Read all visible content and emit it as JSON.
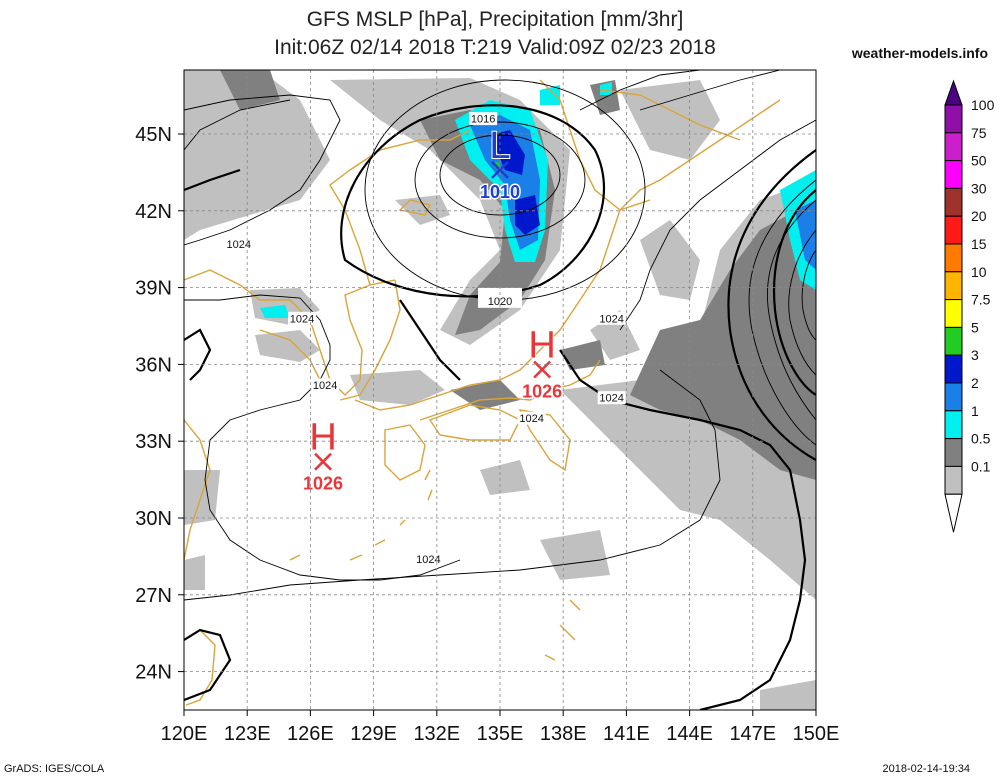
{
  "header": {
    "title_line1": "GFS MSLP [hPa], Precipitation [mm/3hr]",
    "title_line2": "Init:06Z 02/14 2018 T:219 Valid:09Z 02/23 2018",
    "brand": "weather-models.info"
  },
  "footer": {
    "credit": "GrADS: IGES/COLA",
    "timestamp": "2018-02-14-19:34"
  },
  "map": {
    "lon_labels": [
      "120E",
      "123E",
      "126E",
      "129E",
      "132E",
      "135E",
      "138E",
      "141E",
      "144E",
      "147E",
      "150E"
    ],
    "lat_labels": [
      "45N",
      "42N",
      "39N",
      "36N",
      "33N",
      "30N",
      "27N",
      "24N"
    ],
    "lon_range": [
      120,
      150
    ],
    "lat_range": [
      22.5,
      47.5
    ],
    "centers": [
      {
        "type": "L",
        "value": "1010",
        "lon": 135.0,
        "lat": 43.6,
        "color": "#1a3fd6"
      },
      {
        "type": "H",
        "value": "1026",
        "lon": 137.0,
        "lat": 35.8,
        "color": "#e8363a"
      },
      {
        "type": "H",
        "value": "1026",
        "lon": 126.6,
        "lat": 32.2,
        "color": "#e8363a"
      }
    ],
    "isobar_labels": [
      {
        "text": "1016",
        "lon": 134.2,
        "lat": 45.6
      },
      {
        "text": "1020",
        "lon": 135.0,
        "lat": 38.6
      },
      {
        "text": "1024",
        "lon": 122.6,
        "lat": 40.7
      },
      {
        "text": "1024",
        "lon": 125.6,
        "lat": 37.8
      },
      {
        "text": "1024",
        "lon": 126.7,
        "lat": 35.2
      },
      {
        "text": "1024",
        "lon": 140.3,
        "lat": 37.8
      },
      {
        "text": "1024",
        "lon": 140.3,
        "lat": 34.7
      },
      {
        "text": "1024",
        "lon": 136.5,
        "lat": 33.9
      },
      {
        "text": "1024",
        "lon": 131.6,
        "lat": 28.4
      }
    ]
  },
  "colorbar": {
    "labels": [
      "100",
      "75",
      "50",
      "30",
      "20",
      "15",
      "10",
      "7.5",
      "5",
      "3",
      "2",
      "1",
      "0.5",
      "0.1"
    ],
    "colors": [
      "#4b0082",
      "#8f0fa8",
      "#cc1fcc",
      "#ff00ff",
      "#a0322e",
      "#ff1a1a",
      "#ff7a00",
      "#ffb400",
      "#ffff00",
      "#22cc22",
      "#0018cc",
      "#1a7fe6",
      "#00f0f0",
      "#808080",
      "#c0c0c0",
      "#ffffff"
    ]
  }
}
